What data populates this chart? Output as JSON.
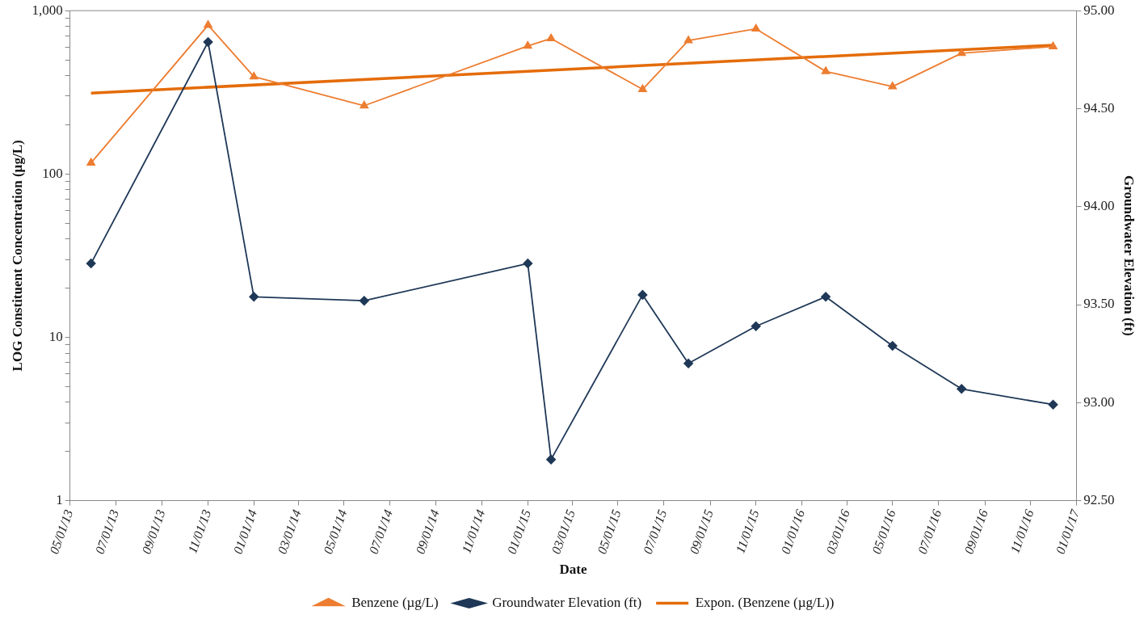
{
  "chart_data": {
    "type": "line",
    "xlabel": "Date",
    "ylabel": "LOG Constituent Concentration (µg/L)",
    "y2label": "Groundwater Elevation (ft)",
    "log": "y",
    "grid": false,
    "legend": "bottom",
    "xlim": [
      "2013-05-01",
      "2017-01-01"
    ],
    "xticks": [
      {
        "value": "2013-05-01",
        "label": "05/01/13"
      },
      {
        "value": "2013-07-01",
        "label": "07/01/13"
      },
      {
        "value": "2013-09-01",
        "label": "09/01/13"
      },
      {
        "value": "2013-11-01",
        "label": "11/01/13"
      },
      {
        "value": "2014-01-01",
        "label": "01/01/14"
      },
      {
        "value": "2014-03-01",
        "label": "03/01/14"
      },
      {
        "value": "2014-05-01",
        "label": "05/01/14"
      },
      {
        "value": "2014-07-01",
        "label": "07/01/14"
      },
      {
        "value": "2014-09-01",
        "label": "09/01/14"
      },
      {
        "value": "2014-11-01",
        "label": "11/01/14"
      },
      {
        "value": "2015-01-01",
        "label": "01/01/15"
      },
      {
        "value": "2015-03-01",
        "label": "03/01/15"
      },
      {
        "value": "2015-05-01",
        "label": "05/01/15"
      },
      {
        "value": "2015-07-01",
        "label": "07/01/15"
      },
      {
        "value": "2015-09-01",
        "label": "09/01/15"
      },
      {
        "value": "2015-11-01",
        "label": "11/01/15"
      },
      {
        "value": "2016-01-01",
        "label": "01/01/16"
      },
      {
        "value": "2016-03-01",
        "label": "03/01/16"
      },
      {
        "value": "2016-05-01",
        "label": "05/01/16"
      },
      {
        "value": "2016-07-01",
        "label": "07/01/16"
      },
      {
        "value": "2016-09-01",
        "label": "09/01/16"
      },
      {
        "value": "2016-11-01",
        "label": "11/01/16"
      },
      {
        "value": "2017-01-01",
        "label": "01/01/17"
      }
    ],
    "ylim": [
      1,
      1000
    ],
    "yticks": [
      {
        "value": 1,
        "label": "1"
      },
      {
        "value": 2,
        "label": null
      },
      {
        "value": 3,
        "label": null
      },
      {
        "value": 4,
        "label": null
      },
      {
        "value": 5,
        "label": null
      },
      {
        "value": 6,
        "label": null
      },
      {
        "value": 7,
        "label": null
      },
      {
        "value": 8,
        "label": null
      },
      {
        "value": 9,
        "label": null
      },
      {
        "value": 10,
        "label": "10"
      },
      {
        "value": 20,
        "label": null
      },
      {
        "value": 30,
        "label": null
      },
      {
        "value": 40,
        "label": null
      },
      {
        "value": 50,
        "label": null
      },
      {
        "value": 60,
        "label": null
      },
      {
        "value": 70,
        "label": null
      },
      {
        "value": 80,
        "label": null
      },
      {
        "value": 90,
        "label": null
      },
      {
        "value": 100,
        "label": "100"
      },
      {
        "value": 200,
        "label": null
      },
      {
        "value": 300,
        "label": null
      },
      {
        "value": 400,
        "label": null
      },
      {
        "value": 500,
        "label": null
      },
      {
        "value": 600,
        "label": null
      },
      {
        "value": 700,
        "label": null
      },
      {
        "value": 800,
        "label": null
      },
      {
        "value": 900,
        "label": null
      },
      {
        "value": 1000,
        "label": "1,000"
      }
    ],
    "y2lim": [
      92.5,
      95
    ],
    "y2ticks": [
      {
        "value": 92.5,
        "label": "92.50"
      },
      {
        "value": 93,
        "label": "93.00"
      },
      {
        "value": 93.5,
        "label": "93.50"
      },
      {
        "value": 94,
        "label": "94.00"
      },
      {
        "value": 94.5,
        "label": "94.50"
      },
      {
        "value": 95,
        "label": "95.00"
      }
    ],
    "x": [
      "2013-05-29",
      "2013-11-01",
      "2014-01-01",
      "2014-05-28",
      "2015-01-01",
      "2015-02-01",
      "2015-06-03",
      "2015-08-03",
      "2015-11-01",
      "2016-02-02",
      "2016-05-01",
      "2016-08-01",
      "2016-12-01"
    ],
    "series": [
      {
        "name": "Benzene (µg/L)",
        "color": "#ed7d31",
        "marker": "triangle",
        "values": [
          117,
          815,
          394,
          262,
          608,
          675,
          330,
          656,
          774,
          425,
          343,
          549,
          603
        ]
      },
      {
        "name": "Groundwater Elevation (ft)",
        "color": "#1f3857",
        "marker": "diamond",
        "axis": "y2",
        "values": [
          93.71,
          94.84,
          93.54,
          93.52,
          93.71,
          92.71,
          93.55,
          93.2,
          93.39,
          93.54,
          93.29,
          93.07,
          92.99
        ]
      },
      {
        "name": "Expon. (Benzene (µg/L))",
        "color": "#e46c0a",
        "marker": "none",
        "type": "line",
        "x": [
          "2013-05-29",
          "2016-12-01"
        ],
        "values": [
          313,
          615
        ]
      }
    ]
  }
}
